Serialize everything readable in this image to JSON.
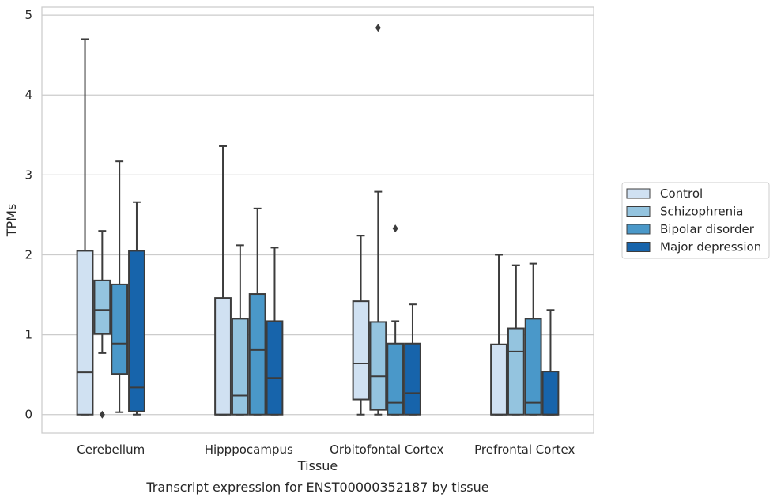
{
  "chart_data": {
    "type": "boxplot",
    "caption": "Transcript expression for ENST00000352187 by tissue",
    "xlabel": "Tissue",
    "ylabel": "TPMs",
    "ylim": [
      -0.23,
      5.1
    ],
    "yticks": [
      0,
      1,
      2,
      3,
      4,
      5
    ],
    "ytick_labels": [
      "0",
      "1",
      "2",
      "3",
      "4",
      "5"
    ],
    "grid": true,
    "legend_position": "right",
    "categories": [
      "Cerebellum",
      "Hipppocampus",
      "Orbitofontal Cortex",
      "Prefrontal Cortex"
    ],
    "series": [
      {
        "name": "Control",
        "color": "#d0e1f2",
        "boxes": [
          {
            "whislo": 0,
            "q1": 0,
            "med": 0.53,
            "q3": 2.05,
            "whishi": 4.7,
            "fliers": []
          },
          {
            "whislo": 0,
            "q1": 0,
            "med": 0,
            "q3": 1.46,
            "whishi": 3.36,
            "fliers": []
          },
          {
            "whislo": 0,
            "q1": 0.19,
            "med": 0.64,
            "q3": 1.42,
            "whishi": 2.24,
            "fliers": []
          },
          {
            "whislo": 0,
            "q1": 0,
            "med": 0,
            "q3": 0.88,
            "whishi": 2.0,
            "fliers": []
          }
        ]
      },
      {
        "name": "Schizophrenia",
        "color": "#94c4df",
        "boxes": [
          {
            "whislo": 0.77,
            "q1": 1.01,
            "med": 1.31,
            "q3": 1.68,
            "whishi": 2.3,
            "fliers": [
              0
            ]
          },
          {
            "whislo": 0,
            "q1": 0,
            "med": 0.24,
            "q3": 1.2,
            "whishi": 2.12,
            "fliers": []
          },
          {
            "whislo": 0,
            "q1": 0.06,
            "med": 0.48,
            "q3": 1.16,
            "whishi": 2.79,
            "fliers": [
              4.84
            ]
          },
          {
            "whislo": 0,
            "q1": 0,
            "med": 0.79,
            "q3": 1.08,
            "whishi": 1.87,
            "fliers": []
          }
        ]
      },
      {
        "name": "Bipolar disorder",
        "color": "#4a98c9",
        "boxes": [
          {
            "whislo": 0.03,
            "q1": 0.51,
            "med": 0.89,
            "q3": 1.63,
            "whishi": 3.17,
            "fliers": []
          },
          {
            "whislo": 0,
            "q1": 0,
            "med": 0.81,
            "q3": 1.51,
            "whishi": 2.58,
            "fliers": []
          },
          {
            "whislo": 0,
            "q1": 0,
            "med": 0.15,
            "q3": 0.89,
            "whishi": 1.17,
            "fliers": [
              2.33
            ]
          },
          {
            "whislo": 0,
            "q1": 0,
            "med": 0.15,
            "q3": 1.2,
            "whishi": 1.89,
            "fliers": []
          }
        ]
      },
      {
        "name": "Major depression",
        "color": "#1764ab",
        "boxes": [
          {
            "whislo": 0,
            "q1": 0.04,
            "med": 0.34,
            "q3": 2.05,
            "whishi": 2.66,
            "fliers": []
          },
          {
            "whislo": 0,
            "q1": 0,
            "med": 0.46,
            "q3": 1.17,
            "whishi": 2.09,
            "fliers": []
          },
          {
            "whislo": 0,
            "q1": 0,
            "med": 0.27,
            "q3": 0.89,
            "whishi": 1.38,
            "fliers": []
          },
          {
            "whislo": 0,
            "q1": 0,
            "med": 0,
            "q3": 0.54,
            "whishi": 1.31,
            "fliers": []
          }
        ]
      }
    ]
  }
}
